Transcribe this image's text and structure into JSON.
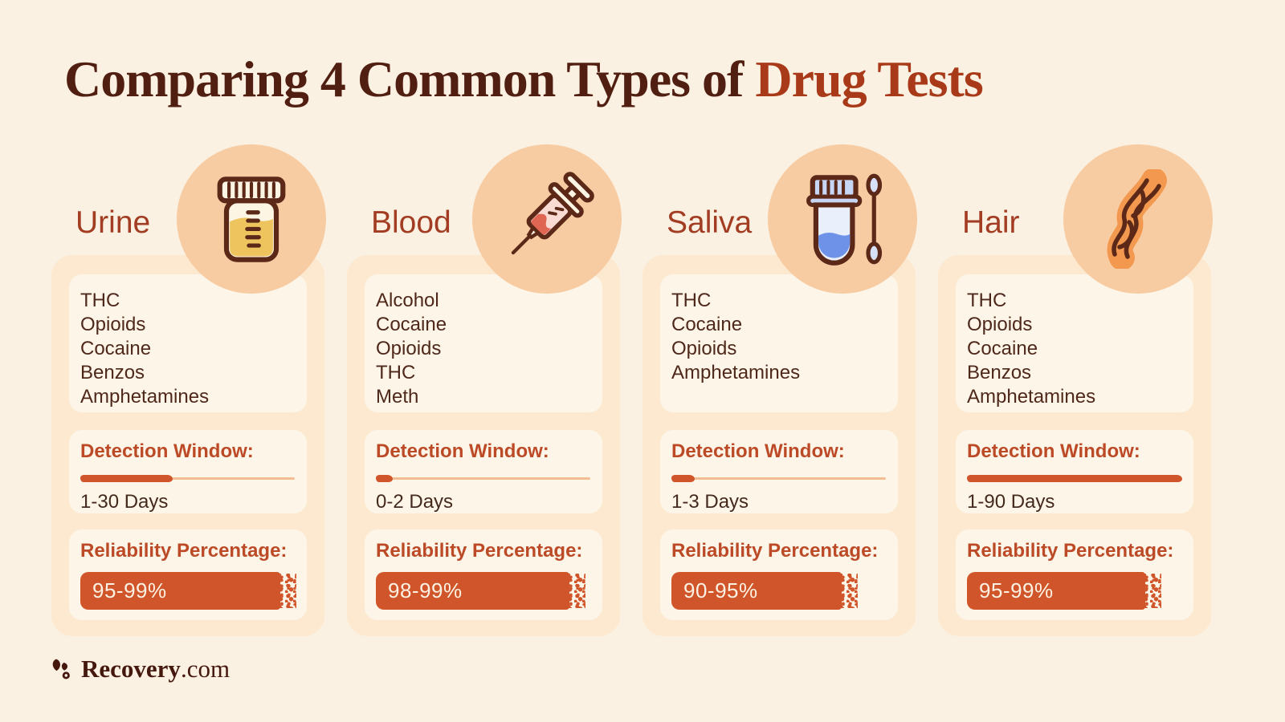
{
  "title": {
    "prefix": "Comparing 4 Common Types of ",
    "highlight": "Drug Tests"
  },
  "section_labels": {
    "detection_window": "Detection Window:",
    "reliability": "Reliability Percentage:"
  },
  "columns": [
    {
      "name": "Urine",
      "icon": "urine-cup-icon",
      "substances": [
        "THC",
        "Opioids",
        "Cocaine",
        "Benzos",
        "Amphetamines"
      ],
      "detection_window": "1-30 Days",
      "detection_fill_pct": 43,
      "reliability": "95-99%",
      "reliability_fill_pct": 93
    },
    {
      "name": "Blood",
      "icon": "syringe-icon",
      "substances": [
        "Alcohol",
        "Cocaine",
        "Opioids",
        "THC",
        "Meth"
      ],
      "detection_window": "0-2 Days",
      "detection_fill_pct": 8,
      "reliability": "98-99%",
      "reliability_fill_pct": 90
    },
    {
      "name": "Saliva",
      "icon": "saliva-test-icon",
      "substances": [
        "THC",
        "Cocaine",
        "Opioids",
        "Amphetamines"
      ],
      "detection_window": "1-3 Days",
      "detection_fill_pct": 11,
      "reliability": "90-95%",
      "reliability_fill_pct": 79
    },
    {
      "name": "Hair",
      "icon": "hair-strand-icon",
      "substances": [
        "THC",
        "Opioids",
        "Cocaine",
        "Benzos",
        "Amphetamines"
      ],
      "detection_window": "1-90 Days",
      "detection_fill_pct": 100,
      "reliability": "95-99%",
      "reliability_fill_pct": 83
    }
  ],
  "footer": {
    "brand": "Recovery",
    "suffix": ".com"
  },
  "colors": {
    "background": "#fbf1e2",
    "panel": "#fce9cf",
    "card": "#fdf5e8",
    "icon_circle": "#f8cca2",
    "accent_orange": "#d1552a",
    "track": "#f2bd92",
    "title_dark": "#511f12",
    "title_highlight": "#a93a19",
    "column_title": "#a23c22",
    "label_red": "#bc4a26",
    "body_text": "#4e281a"
  }
}
